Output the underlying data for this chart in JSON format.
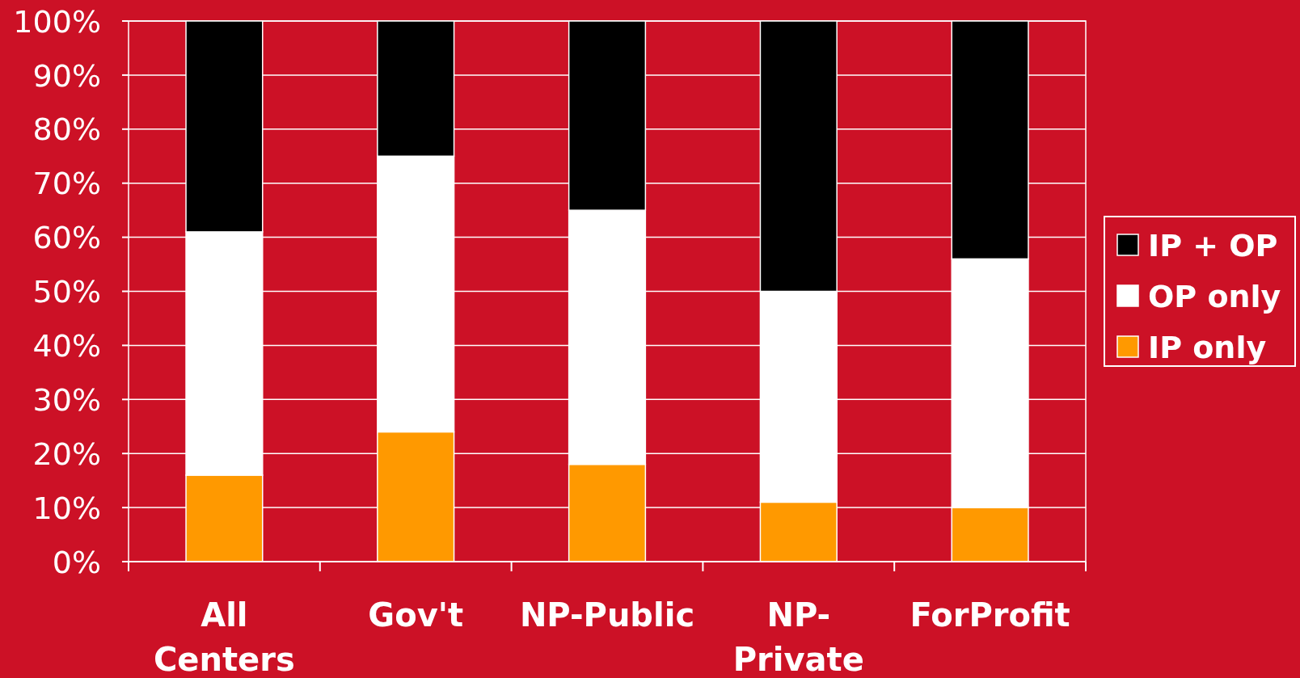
{
  "chart_data": {
    "type": "bar",
    "stacked": true,
    "categories": [
      "All Centers",
      "Gov't",
      "NP-Public",
      "NP-Private",
      "ForProfit"
    ],
    "series": [
      {
        "name": "IP only",
        "color": "#ff9900",
        "values": [
          16,
          24,
          18,
          11,
          10
        ]
      },
      {
        "name": "OP only",
        "color": "#ffffff",
        "values": [
          45,
          51,
          47,
          39,
          46
        ]
      },
      {
        "name": "IP + OP",
        "color": "#000000",
        "values": [
          39,
          25,
          35,
          50,
          44
        ]
      }
    ],
    "ylim": [
      0,
      100
    ],
    "yticks": [
      {
        "value": 0,
        "label": "0%"
      },
      {
        "value": 10,
        "label": "10%"
      },
      {
        "value": 20,
        "label": "20%"
      },
      {
        "value": 30,
        "label": "30%"
      },
      {
        "value": 40,
        "label": "40%"
      },
      {
        "value": 50,
        "label": "50%"
      },
      {
        "value": 60,
        "label": "60%"
      },
      {
        "value": 70,
        "label": "70%"
      },
      {
        "value": 80,
        "label": "80%"
      },
      {
        "value": 90,
        "label": "90%"
      },
      {
        "value": 100,
        "label": "100%"
      }
    ],
    "grid": "y",
    "legend": "right"
  }
}
